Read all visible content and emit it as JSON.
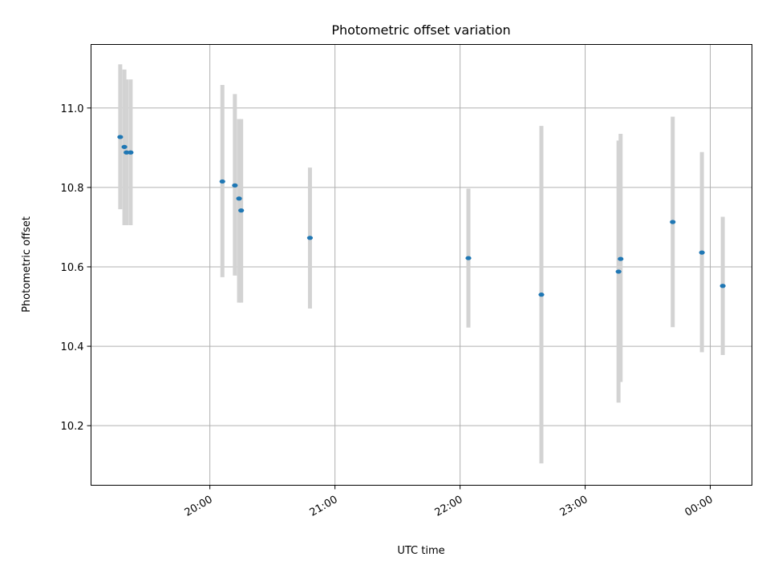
{
  "chart_data": {
    "type": "scatter",
    "title": "Photometric offset variation",
    "xlabel": "UTC time",
    "ylabel": "Photometric offset",
    "x_axis": {
      "type": "time",
      "range": [
        "19:03",
        "00:20"
      ],
      "ticks": [
        "20:00",
        "21:00",
        "22:00",
        "23:00",
        "00:00"
      ]
    },
    "y_axis": {
      "range": [
        10.05,
        11.16
      ],
      "ticks": [
        "10.2",
        "10.4",
        "10.6",
        "10.8",
        "11.0"
      ]
    },
    "grid": true,
    "colors": {
      "point": "#1f77b4",
      "errorbar": "#d3d3d3",
      "grid": "#b0b0b0"
    },
    "points": [
      {
        "x": "19:17",
        "y": 10.927,
        "y_low": 10.745,
        "y_high": 11.11
      },
      {
        "x": "19:19",
        "y": 10.902,
        "y_low": 10.705,
        "y_high": 11.097
      },
      {
        "x": "19:20",
        "y": 10.888,
        "y_low": 10.705,
        "y_high": 11.072
      },
      {
        "x": "19:22",
        "y": 10.888,
        "y_low": 10.705,
        "y_high": 11.072
      },
      {
        "x": "20:06",
        "y": 10.815,
        "y_low": 10.574,
        "y_high": 11.058
      },
      {
        "x": "20:12",
        "y": 10.805,
        "y_low": 10.578,
        "y_high": 11.035
      },
      {
        "x": "20:14",
        "y": 10.772,
        "y_low": 10.51,
        "y_high": 10.972
      },
      {
        "x": "20:15",
        "y": 10.742,
        "y_low": 10.51,
        "y_high": 10.972
      },
      {
        "x": "20:48",
        "y": 10.673,
        "y_low": 10.495,
        "y_high": 10.85
      },
      {
        "x": "22:04",
        "y": 10.622,
        "y_low": 10.447,
        "y_high": 10.797
      },
      {
        "x": "22:39",
        "y": 10.53,
        "y_low": 10.105,
        "y_high": 10.955
      },
      {
        "x": "23:16",
        "y": 10.588,
        "y_low": 10.258,
        "y_high": 10.918
      },
      {
        "x": "23:17",
        "y": 10.62,
        "y_low": 10.31,
        "y_high": 10.935
      },
      {
        "x": "23:42",
        "y": 10.713,
        "y_low": 10.448,
        "y_high": 10.978
      },
      {
        "x": "23:56",
        "y": 10.636,
        "y_low": 10.385,
        "y_high": 10.889
      },
      {
        "x": "00:06",
        "y": 10.552,
        "y_low": 10.378,
        "y_high": 10.726
      }
    ]
  }
}
